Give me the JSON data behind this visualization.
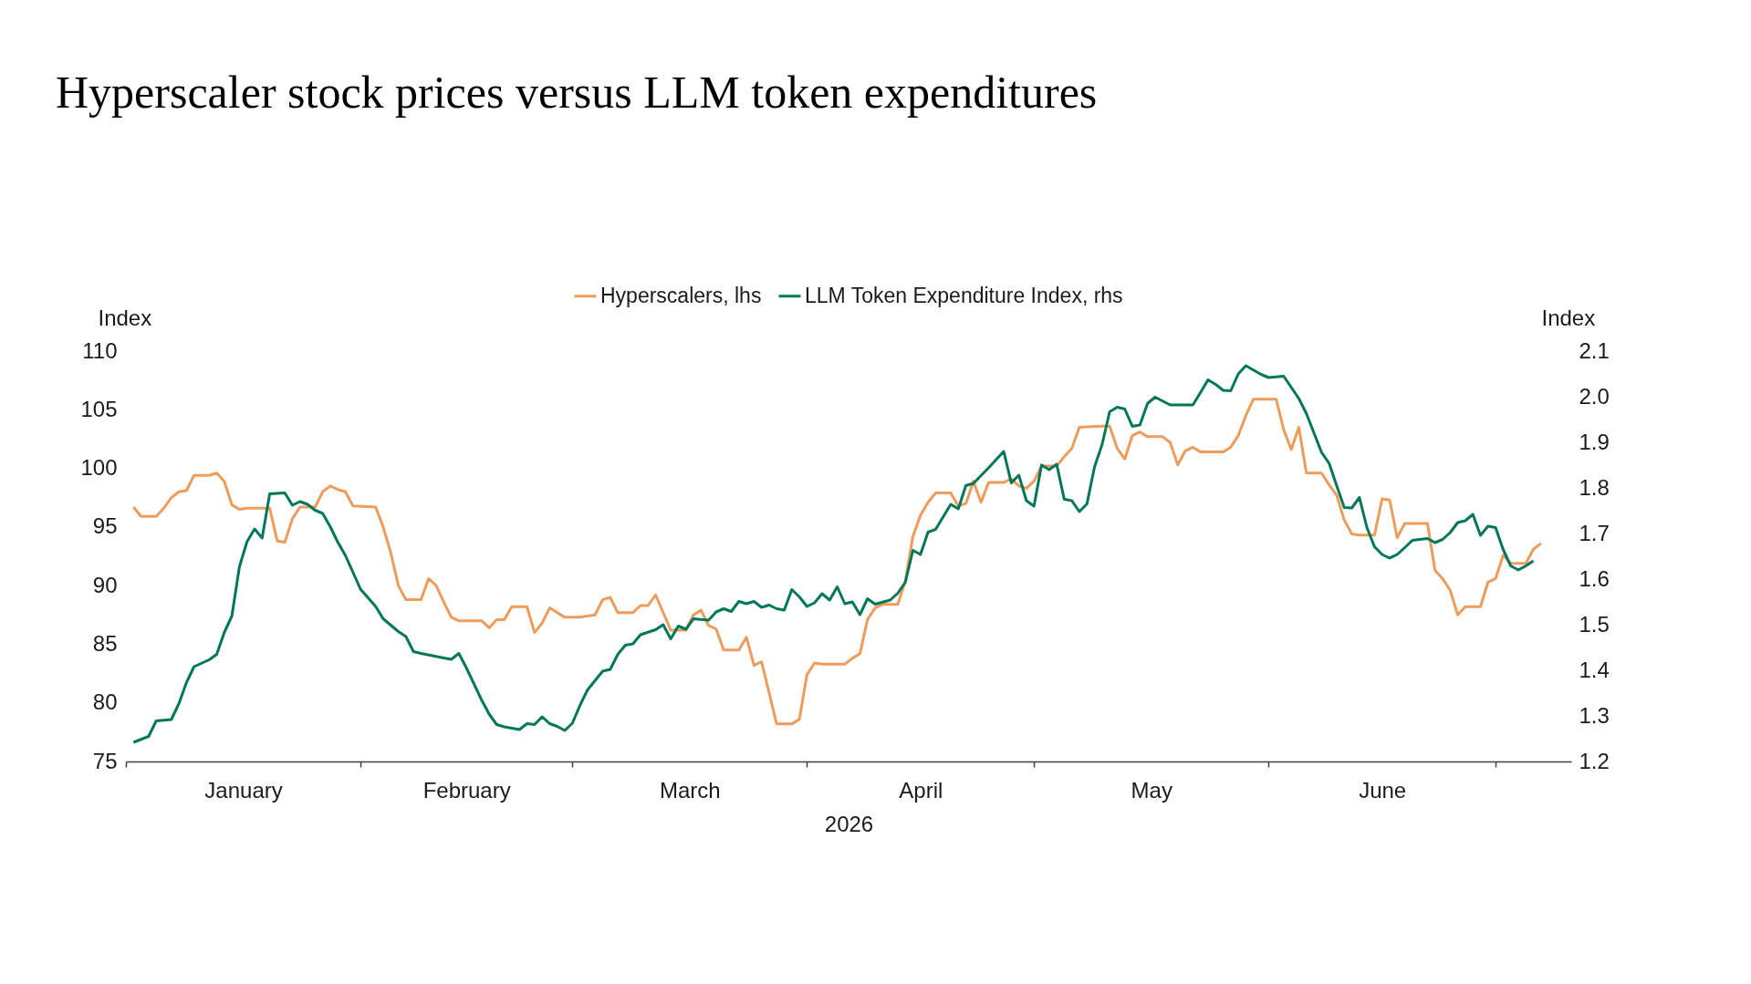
{
  "chart_data": {
    "type": "line",
    "title": "Hyperscaler stock prices versus LLM token expenditures",
    "xlabel": "2026",
    "ylabel": "Index",
    "y2label": "Index",
    "legend": "top",
    "xlim": [
      "2026-01-01",
      "2026-07-11"
    ],
    "xticks": [
      {
        "value": "2026-01-01",
        "label": null
      },
      {
        "value": "2026-01-16T12:00",
        "label": "January"
      },
      {
        "value": "2026-02-01",
        "label": null
      },
      {
        "value": "2026-02-15",
        "label": "February"
      },
      {
        "value": "2026-03-01",
        "label": null
      },
      {
        "value": "2026-03-16T12:00",
        "label": "March"
      },
      {
        "value": "2026-04-01",
        "label": null
      },
      {
        "value": "2026-04-16",
        "label": "April"
      },
      {
        "value": "2026-05-01",
        "label": null
      },
      {
        "value": "2026-05-16T12:00",
        "label": "May"
      },
      {
        "value": "2026-06-01",
        "label": null
      },
      {
        "value": "2026-06-16",
        "label": "June"
      },
      {
        "value": "2026-07-01",
        "label": null
      }
    ],
    "ylim": [
      75,
      110
    ],
    "yticks": [
      75,
      80,
      85,
      90,
      95,
      100,
      105,
      110
    ],
    "y2lim": [
      1.2,
      2.1
    ],
    "y2ticks": [
      1.2,
      1.3,
      1.4,
      1.5,
      1.6,
      1.7,
      1.8,
      1.9,
      {
        "value": 2,
        "label": "2.0"
      },
      2.1
    ],
    "series": [
      {
        "name": "Hyperscalers, lhs",
        "color": "#ee9c5c",
        "axis": "y",
        "x": [
          "2026-01-02",
          "2026-01-03",
          "2026-01-05",
          "2026-01-06",
          "2026-01-07",
          "2026-01-08",
          "2026-01-09",
          "2026-01-10",
          "2026-01-12",
          "2026-01-13",
          "2026-01-14",
          "2026-01-15",
          "2026-01-16",
          "2026-01-17",
          "2026-01-20",
          "2026-01-21",
          "2026-01-22",
          "2026-01-23",
          "2026-01-24",
          "2026-01-26",
          "2026-01-27",
          "2026-01-28",
          "2026-01-29",
          "2026-01-30",
          "2026-01-31",
          "2026-02-03",
          "2026-02-04",
          "2026-02-05",
          "2026-02-06",
          "2026-02-07",
          "2026-02-09",
          "2026-02-10",
          "2026-02-11",
          "2026-02-12",
          "2026-02-13",
          "2026-02-14",
          "2026-02-17",
          "2026-02-18",
          "2026-02-19",
          "2026-02-20",
          "2026-02-21",
          "2026-02-23",
          "2026-02-24",
          "2026-02-25",
          "2026-02-26",
          "2026-02-28",
          "2026-03-02",
          "2026-03-03",
          "2026-03-04",
          "2026-03-05",
          "2026-03-06",
          "2026-03-07",
          "2026-03-09",
          "2026-03-10",
          "2026-03-11",
          "2026-03-12",
          "2026-03-14",
          "2026-03-16",
          "2026-03-17",
          "2026-03-18",
          "2026-03-19",
          "2026-03-20",
          "2026-03-21",
          "2026-03-23",
          "2026-03-24",
          "2026-03-25",
          "2026-03-26",
          "2026-03-28",
          "2026-03-30",
          "2026-03-31",
          "2026-04-01",
          "2026-04-02",
          "2026-04-03",
          "2026-04-06",
          "2026-04-07",
          "2026-04-08",
          "2026-04-09",
          "2026-04-10",
          "2026-04-11",
          "2026-04-13",
          "2026-04-14",
          "2026-04-15",
          "2026-04-16",
          "2026-04-17",
          "2026-04-18",
          "2026-04-20",
          "2026-04-21",
          "2026-04-22",
          "2026-04-23",
          "2026-04-24",
          "2026-04-25",
          "2026-04-27",
          "2026-04-28",
          "2026-04-29",
          "2026-04-30",
          "2026-05-01",
          "2026-05-02",
          "2026-05-04",
          "2026-05-05",
          "2026-05-06",
          "2026-05-07",
          "2026-05-10",
          "2026-05-11",
          "2026-05-12",
          "2026-05-13",
          "2026-05-14",
          "2026-05-15",
          "2026-05-16",
          "2026-05-18",
          "2026-05-19",
          "2026-05-20",
          "2026-05-21",
          "2026-05-22",
          "2026-05-23",
          "2026-05-26",
          "2026-05-27",
          "2026-05-28",
          "2026-05-29",
          "2026-05-30",
          "2026-06-02",
          "2026-06-03",
          "2026-06-04",
          "2026-06-05",
          "2026-06-06",
          "2026-06-08",
          "2026-06-09",
          "2026-06-10",
          "2026-06-11",
          "2026-06-12",
          "2026-06-13",
          "2026-06-15",
          "2026-06-16",
          "2026-06-17",
          "2026-06-18",
          "2026-06-19",
          "2026-06-22",
          "2026-06-23",
          "2026-06-24",
          "2026-06-25",
          "2026-06-26",
          "2026-06-27",
          "2026-06-29",
          "2026-06-30",
          "2026-07-01",
          "2026-07-02",
          "2026-07-03",
          "2026-07-05",
          "2026-07-06",
          "2026-07-07"
        ],
        "values": [
          96.7,
          95.9,
          95.9,
          96.6,
          97.5,
          98.0,
          98.1,
          99.4,
          99.4,
          99.6,
          98.9,
          96.9,
          96.5,
          96.6,
          96.6,
          93.8,
          93.7,
          95.7,
          96.7,
          96.7,
          98.0,
          98.5,
          98.2,
          98.0,
          96.8,
          96.7,
          95.0,
          92.8,
          90.0,
          88.8,
          88.8,
          90.6,
          90.0,
          88.6,
          87.3,
          87.0,
          87.0,
          86.4,
          87.1,
          87.1,
          88.2,
          88.2,
          86.0,
          86.8,
          88.1,
          87.3,
          87.3,
          87.4,
          87.5,
          88.8,
          89.0,
          87.7,
          87.7,
          88.3,
          88.3,
          89.2,
          86.2,
          86.2,
          87.5,
          87.9,
          86.6,
          86.3,
          84.5,
          84.5,
          85.6,
          83.2,
          83.5,
          78.2,
          78.2,
          78.6,
          82.4,
          83.4,
          83.3,
          83.3,
          83.8,
          84.2,
          87.1,
          88.1,
          88.4,
          88.4,
          90.4,
          94.2,
          96.0,
          97.1,
          97.9,
          97.9,
          96.8,
          97.0,
          98.9,
          97.1,
          98.8,
          98.8,
          99.1,
          98.5,
          98.3,
          98.9,
          100.2,
          100.2,
          101.0,
          101.7,
          103.5,
          103.6,
          103.6,
          101.7,
          100.8,
          102.8,
          103.1,
          102.7,
          102.7,
          102.2,
          100.3,
          101.5,
          101.8,
          101.4,
          101.4,
          101.8,
          102.8,
          104.5,
          105.9,
          105.9,
          103.3,
          101.6,
          103.5,
          99.6,
          99.6,
          98.6,
          97.7,
          95.6,
          94.4,
          94.3,
          94.3,
          97.4,
          97.3,
          94.1,
          95.3,
          95.3,
          91.3,
          90.6,
          89.6,
          87.5,
          88.2,
          88.2,
          90.3,
          90.6,
          92.6,
          91.9,
          91.9,
          93.1,
          93.6
        ]
      },
      {
        "name": "LLM Token Expenditure Index, rhs",
        "color": "#00775a",
        "axis": "y2",
        "x": [
          "2026-01-02",
          "2026-01-04",
          "2026-01-05",
          "2026-01-07",
          "2026-01-08",
          "2026-01-09",
          "2026-01-10",
          "2026-01-12",
          "2026-01-13",
          "2026-01-14",
          "2026-01-15",
          "2026-01-16",
          "2026-01-17",
          "2026-01-18",
          "2026-01-19",
          "2026-01-20",
          "2026-01-22",
          "2026-01-23",
          "2026-01-24",
          "2026-01-25",
          "2026-01-26",
          "2026-01-27",
          "2026-01-28",
          "2026-01-29",
          "2026-01-30",
          "2026-02-01",
          "2026-02-03",
          "2026-02-04",
          "2026-02-06",
          "2026-02-07",
          "2026-02-08",
          "2026-02-09",
          "2026-02-12",
          "2026-02-13",
          "2026-02-14",
          "2026-02-15",
          "2026-02-17",
          "2026-02-18",
          "2026-02-19",
          "2026-02-20",
          "2026-02-22",
          "2026-02-23",
          "2026-02-24",
          "2026-02-25",
          "2026-02-26",
          "2026-02-27",
          "2026-02-28",
          "2026-03-01",
          "2026-03-02",
          "2026-03-03",
          "2026-03-05",
          "2026-03-06",
          "2026-03-07",
          "2026-03-08",
          "2026-03-09",
          "2026-03-10",
          "2026-03-12",
          "2026-03-13",
          "2026-03-14",
          "2026-03-15",
          "2026-03-16",
          "2026-03-17",
          "2026-03-19",
          "2026-03-20",
          "2026-03-21",
          "2026-03-22",
          "2026-03-23",
          "2026-03-24",
          "2026-03-25",
          "2026-03-26",
          "2026-03-27",
          "2026-03-28",
          "2026-03-29",
          "2026-03-30",
          "2026-03-31",
          "2026-04-01",
          "2026-04-02",
          "2026-04-03",
          "2026-04-04",
          "2026-04-05",
          "2026-04-06",
          "2026-04-07",
          "2026-04-08",
          "2026-04-09",
          "2026-04-10",
          "2026-04-12",
          "2026-04-13",
          "2026-04-14",
          "2026-04-15",
          "2026-04-16",
          "2026-04-17",
          "2026-04-18",
          "2026-04-20",
          "2026-04-21",
          "2026-04-22",
          "2026-04-23",
          "2026-04-25",
          "2026-04-27",
          "2026-04-28",
          "2026-04-29",
          "2026-04-30",
          "2026-05-01",
          "2026-05-02",
          "2026-05-03",
          "2026-05-04",
          "2026-05-05",
          "2026-05-06",
          "2026-05-07",
          "2026-05-08",
          "2026-05-09",
          "2026-05-10",
          "2026-05-11",
          "2026-05-12",
          "2026-05-13",
          "2026-05-14",
          "2026-05-15",
          "2026-05-16",
          "2026-05-17",
          "2026-05-19",
          "2026-05-22",
          "2026-05-23",
          "2026-05-24",
          "2026-05-25",
          "2026-05-26",
          "2026-05-27",
          "2026-05-28",
          "2026-05-29",
          "2026-05-31",
          "2026-06-01",
          "2026-06-03",
          "2026-06-05",
          "2026-06-06",
          "2026-06-08",
          "2026-06-09",
          "2026-06-10",
          "2026-06-11",
          "2026-06-12",
          "2026-06-13",
          "2026-06-14",
          "2026-06-15",
          "2026-06-16",
          "2026-06-17",
          "2026-06-18",
          "2026-06-19",
          "2026-06-20",
          "2026-06-22",
          "2026-06-23",
          "2026-06-24",
          "2026-06-25",
          "2026-06-26",
          "2026-06-27",
          "2026-06-28",
          "2026-06-29",
          "2026-06-30",
          "2026-07-01",
          "2026-07-02",
          "2026-07-03",
          "2026-07-04",
          "2026-07-05",
          "2026-07-06"
        ],
        "values": [
          1.242,
          1.255,
          1.289,
          1.292,
          1.327,
          1.373,
          1.408,
          1.423,
          1.435,
          1.483,
          1.519,
          1.627,
          1.682,
          1.71,
          1.69,
          1.787,
          1.789,
          1.762,
          1.77,
          1.764,
          1.751,
          1.744,
          1.715,
          1.681,
          1.652,
          1.578,
          1.54,
          1.513,
          1.485,
          1.474,
          1.441,
          1.437,
          1.427,
          1.424,
          1.437,
          1.405,
          1.335,
          1.304,
          1.281,
          1.276,
          1.27,
          1.283,
          1.281,
          1.298,
          1.283,
          1.277,
          1.268,
          1.284,
          1.323,
          1.357,
          1.398,
          1.402,
          1.435,
          1.455,
          1.458,
          1.478,
          1.489,
          1.5,
          1.469,
          1.497,
          1.49,
          1.513,
          1.51,
          1.528,
          1.535,
          1.529,
          1.551,
          1.546,
          1.551,
          1.538,
          1.543,
          1.535,
          1.532,
          1.577,
          1.561,
          1.54,
          1.548,
          1.568,
          1.554,
          1.583,
          1.546,
          1.55,
          1.522,
          1.557,
          1.545,
          1.554,
          1.569,
          1.593,
          1.663,
          1.654,
          1.703,
          1.709,
          1.764,
          1.754,
          1.805,
          1.81,
          1.844,
          1.88,
          1.811,
          1.828,
          1.772,
          1.76,
          1.85,
          1.84,
          1.852,
          1.775,
          1.772,
          1.748,
          1.765,
          1.846,
          1.895,
          1.967,
          1.977,
          1.973,
          1.935,
          1.938,
          1.985,
          1.999,
          1.982,
          1.982,
          2.009,
          2.037,
          2.027,
          2.014,
          2.013,
          2.05,
          2.068,
          2.049,
          2.042,
          2.045,
          1.996,
          1.963,
          1.878,
          1.854,
          1.805,
          1.757,
          1.756,
          1.779,
          1.713,
          1.671,
          1.654,
          1.646,
          1.654,
          1.669,
          1.685,
          1.689,
          1.68,
          1.687,
          1.702,
          1.724,
          1.728,
          1.742,
          1.696,
          1.716,
          1.713,
          1.665,
          1.629,
          1.62,
          1.629,
          1.64
        ]
      }
    ]
  }
}
